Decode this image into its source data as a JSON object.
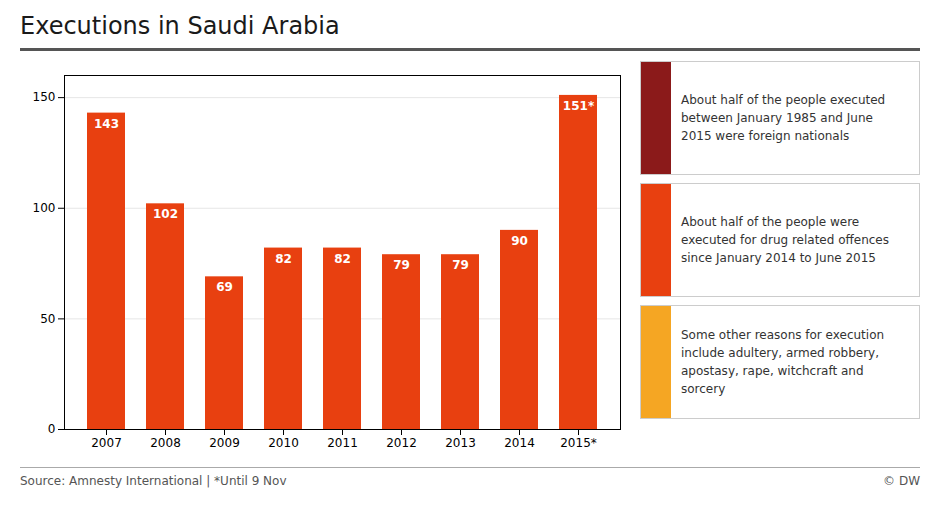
{
  "chart_data": {
    "type": "bar",
    "title": "Executions in Saudi Arabia",
    "categories": [
      "2007",
      "2008",
      "2009",
      "2010",
      "2011",
      "2012",
      "2013",
      "2014",
      "2015*"
    ],
    "values": [
      143,
      102,
      69,
      82,
      82,
      79,
      79,
      90,
      151
    ],
    "value_labels": [
      "143",
      "102",
      "69",
      "82",
      "82",
      "79",
      "79",
      "90",
      "151*"
    ],
    "data_labels": true,
    "color": "#e84010",
    "ylim": [
      0,
      160
    ],
    "yticks": [
      0,
      50,
      100,
      150
    ],
    "grid": true,
    "annotations": [
      {
        "color": "#8b1a1a",
        "text": "About half of the people executed\nbetween January 1985 and June\n2015 were foreign nationals"
      },
      {
        "color": "#e84010",
        "text": "About half of the people were\nexecuted for drug related offences\nsince January 2014 to June 2015"
      },
      {
        "color": "#f5a623",
        "text": "Some other reasons for execution\ninclude adultery, armed robbery,\napostasy, rape, witchcraft and\nsorcery"
      }
    ],
    "source": "Source: Amnesty International  | *Until 9 Nov",
    "credit": "© DW"
  }
}
